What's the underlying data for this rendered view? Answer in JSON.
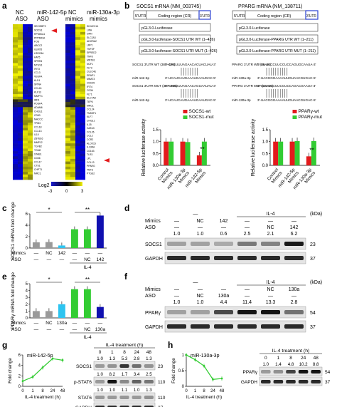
{
  "panels": {
    "a": "a",
    "b": "b",
    "c": "c",
    "d": "d",
    "e": "e",
    "f": "f",
    "g": "g",
    "h": "h"
  },
  "colors": {
    "heat_pos": "#f2f200",
    "heat_neg": "#1a1acc",
    "green": "#33cc33",
    "red": "#e31a1c",
    "blue": "#1010b0",
    "cyan": "#2ec4f0",
    "gray": "#9a9a9a",
    "gapdh": "#222222"
  },
  "a": {
    "col_groups": [
      "NC ASO",
      "miR-142-5p ASO",
      "NC mimics",
      "miR-130a-3p mimics"
    ],
    "genes_left": [
      "SECISBP2",
      "SOCS1",
      "RPS6KA1",
      "PPP6R3A",
      "FOS",
      "ABCC2",
      "GLRX5",
      "LRRC8A",
      "HAT5",
      "SPRR4",
      "MTUS1",
      "IFIT3",
      "CCL3",
      "VEGFA",
      "KLF4",
      "SPIN4",
      "CCL24",
      "KLF13",
      "MMPT1",
      "IRF4",
      "PDGFA",
      "ADAM6",
      "CHI3L1",
      "CD83",
      "MACCC",
      "TPM3",
      "CCL18",
      "CCL13",
      "IL10",
      "ZBTB16",
      "MMP12",
      "TGFB2",
      "TGM2",
      "STAB1",
      "CD36",
      "CCL17",
      "CTS1",
      "CHPT1",
      "MRC1"
    ],
    "genes_right": [
      "SIGLEC14",
      "LIPA",
      "GRN",
      "SLC2A3",
      "ADORA2",
      "LRP1",
      "TNFSF",
      "SPRED2",
      "TNF8",
      "MNTB1",
      "NCF1",
      "FLT3",
      "CLEC4E",
      "ERAP1",
      "MNAT3",
      "CDC25",
      "IFIT4",
      "CD36",
      "FLT1",
      "SLC7A8",
      "TEP6",
      "MRC1",
      "CCL24",
      "TM5SF1",
      "KLF7",
      "CHI3L1",
      "IL15",
      "GATA3",
      "CCL26",
      "CCL2",
      "CCR2",
      "ALOX15",
      "IL13RA",
      "CD163",
      "TLR3",
      "LPL",
      "CCL13",
      "PPARG",
      "TNFS",
      "PTGS2"
    ],
    "legend_label": "Log2",
    "legend_ticks": [
      "-3",
      "0",
      "3"
    ]
  },
  "b": {
    "left": {
      "title": "SOCS1 mRNA (NM_003745)",
      "utr5": "5'UTR",
      "coding": "Coding region (CR)",
      "utr3": "3'UTR",
      "constructs": [
        "pGL3.0-Luciferase",
        "pGL3.0-luciferase-SOCS1 UTR WT (1–426)",
        "pGL3.0-luciferase-SOCS1 UTR MUT (1–426)"
      ],
      "wt_label": "SOCS1 3'UTR WT (387–409)",
      "wt_seq": "5'-CAGUUUAGAACACUACUAU-3'",
      "mir_label": "miR-142-5p",
      "mir_seq": "3'-UCAUCAUGAAAUGAAUGAC-5'",
      "mut_label": "SOCS1 3'UTR MUT (387–409)",
      "mut_seq": "5'-CAGUUUAGAACAGUAAUAU-3'",
      "mir_seq2": "3'-UCAUCAUGAAAUGAAUGAC-5'"
    },
    "right": {
      "title": "PPARG mRNA (NM_138711)",
      "utr5": "5'UTR",
      "coding": "Coding region (CR)",
      "utr3": "3'UTR",
      "constructs": [
        "pGL3.0-Luciferase",
        "pGL3.0-Luciferase-PPARG UTR WT (1–211)",
        "pGL3.0-Luciferase-PPARG UTR MUT (1–211)"
      ],
      "wt_label": "PPARG 3'UTR WT (26–49)",
      "wt_seq": "5'-UUUCCCUUCCUCCAGUGCAAUA-3'",
      "mir_label": "miR-130a-3p",
      "mir_seq": "3'-UACGGGAAAAUUGUAACGUGAC-5'",
      "mut_label": "PPARG 3'UTR MUT (26–49)",
      "mut_seq": "5'-UUUCCCUUCCUCCAGACGAAUA-3'",
      "mir_seq2": "3'-UACGGGAAAAUUGUAACGUGAC-5'"
    }
  },
  "c": {
    "ylabel": "SOCS1 mRNA fold change",
    "stim_label": "IL-4",
    "sig": [
      "*",
      "**"
    ]
  },
  "d": {
    "dash": "—",
    "il4": "IL-4",
    "kda": "(kDa)",
    "mimics_label": "Mimics",
    "aso_label": "ASO",
    "mimics": [
      "",
      "NC",
      "142",
      "",
      "",
      ""
    ],
    "aso": [
      "",
      "",
      "",
      "",
      "NC",
      "142"
    ],
    "values": [
      "1.0",
      "1.0",
      "0.6",
      "2.5",
      "2.1",
      "6.2"
    ],
    "bands": [
      {
        "name": "SOCS1",
        "kda": "23"
      },
      {
        "name": "GAPDH",
        "kda": "37"
      }
    ]
  },
  "e": {
    "ylabel": "PPARγ mRNA fold change",
    "stim_label": "IL-4",
    "sig": [
      "*",
      "**"
    ]
  },
  "f": {
    "dash": "—",
    "il4": "IL-4",
    "kda": "(kDa)",
    "mimics_label": "Mimics",
    "aso_label": "ASO",
    "mimics": [
      "",
      "",
      "",
      "",
      "NC",
      "130a"
    ],
    "aso": [
      "",
      "NC",
      "130a",
      "",
      "",
      ""
    ],
    "values": [
      "1.0",
      "1.0",
      "4.4",
      "11.4",
      "13.3",
      "2.8"
    ],
    "bands": [
      {
        "name": "PPARγ",
        "kda": "54"
      },
      {
        "name": "GAPDH",
        "kda": "37"
      }
    ]
  },
  "g": {
    "plot_title": "miR-142-5p",
    "xlabel": "IL-4 treatment (h)",
    "ylabel": "Fold change",
    "wb_header": "IL-4 treatment (h)",
    "times": [
      "0",
      "1",
      "8",
      "24",
      "48"
    ],
    "bands": [
      {
        "name": "SOCS1",
        "kda": "23",
        "values": [
          "1.0",
          "1.3",
          "5.3",
          "2.8",
          "1.3"
        ]
      },
      {
        "name": "p-STAT6",
        "kda": "110",
        "values": [
          "1.0",
          "8.2",
          "1.7",
          "3.4",
          "2.5"
        ]
      },
      {
        "name": "STAT6",
        "kda": "110",
        "values": [
          "1.0",
          "1.0",
          "1.1",
          "1.0",
          "1.3"
        ]
      },
      {
        "name": "GAPDH",
        "kda": "37",
        "values": []
      }
    ]
  },
  "h": {
    "plot_title": "miR-130a-3p",
    "xlabel": "IL-4 treatment (h)",
    "ylabel": "Fold change",
    "wb_header": "IL-4 treatment (h)",
    "times": [
      "0",
      "1",
      "8",
      "24",
      "48"
    ],
    "bands": [
      {
        "name": "PPARγ",
        "kda": "54",
        "values": [
          "1.0",
          "1.4",
          "4.8",
          "10.2",
          "8.8"
        ]
      },
      {
        "name": "GAPDH",
        "kda": "37",
        "values": []
      }
    ]
  },
  "chart_data": [
    {
      "id": "b-left",
      "type": "bar",
      "categories": [
        "Control Mimics",
        "miR-130a-3p Mimics",
        "miR-142-5p Mimics"
      ],
      "series": [
        {
          "name": "SOCS1-wt",
          "values": [
            1.0,
            1.0,
            0.42
          ]
        },
        {
          "name": "SOCS1-mut",
          "values": [
            1.0,
            0.98,
            1.0
          ]
        }
      ],
      "ylabel": "Relative luciferase activity",
      "ylim": [
        0,
        1.5
      ],
      "yticks": [
        0,
        0.5,
        1.0,
        1.5
      ],
      "annotations": [
        "**"
      ]
    },
    {
      "id": "b-right",
      "type": "bar",
      "categories": [
        "Control Mimics",
        "miR-142-5p Mimics",
        "miR-130a-3p Mimics"
      ],
      "series": [
        {
          "name": "PPARγ-wt",
          "values": [
            1.0,
            1.0,
            0.38
          ]
        },
        {
          "name": "PPARγ-mut",
          "values": [
            1.0,
            1.02,
            1.02
          ]
        }
      ],
      "ylabel": "Relative luciferase activity",
      "ylim": [
        0,
        1.5
      ],
      "yticks": [
        0,
        0.5,
        1.0,
        1.5
      ],
      "annotations": [
        "**"
      ]
    },
    {
      "id": "c",
      "type": "bar",
      "categories": [
        "1",
        "2",
        "3",
        "4",
        "5",
        "6"
      ],
      "mimics": [
        "",
        "NC",
        "142",
        "",
        "",
        ""
      ],
      "aso": [
        "",
        "",
        "",
        "",
        "NC",
        "142"
      ],
      "values": [
        1.0,
        1.05,
        0.45,
        3.3,
        3.3,
        5.7
      ],
      "ylabel": "SOCS1 mRNA fold change",
      "ylim": [
        0,
        6
      ],
      "yticks": [
        0,
        2,
        4,
        6
      ]
    },
    {
      "id": "e",
      "type": "bar",
      "categories": [
        "1",
        "2",
        "3",
        "4",
        "5",
        "6"
      ],
      "mimics": [
        "",
        "NC",
        "130a",
        "",
        "",
        ""
      ],
      "aso": [
        "",
        "",
        "",
        "",
        "NC",
        "130a"
      ],
      "values": [
        1.0,
        1.0,
        2.0,
        4.2,
        4.2,
        1.6
      ],
      "ylabel": "PPARγ mRNA fold change",
      "ylim": [
        0,
        5
      ],
      "yticks": [
        0,
        1,
        2,
        3,
        4,
        5
      ]
    },
    {
      "id": "g",
      "type": "line",
      "x": [
        "0",
        "1",
        "8",
        "24",
        "48"
      ],
      "values": [
        1.0,
        1.8,
        3.6,
        5.3,
        5.0
      ],
      "ylabel": "Fold change",
      "xlabel": "IL-4 treatment (h)",
      "ylim": [
        0,
        6
      ],
      "yticks": [
        0,
        2,
        4,
        6
      ]
    },
    {
      "id": "h",
      "type": "line",
      "x": [
        "0",
        "1",
        "8",
        "24",
        "48"
      ],
      "values": [
        1.0,
        0.85,
        0.65,
        0.22,
        0.25
      ],
      "ylabel": "Fold change",
      "xlabel": "IL-4 treatment (h)",
      "ylim": [
        0,
        1.0
      ],
      "yticks": [
        0,
        0.5,
        1.0
      ]
    }
  ]
}
